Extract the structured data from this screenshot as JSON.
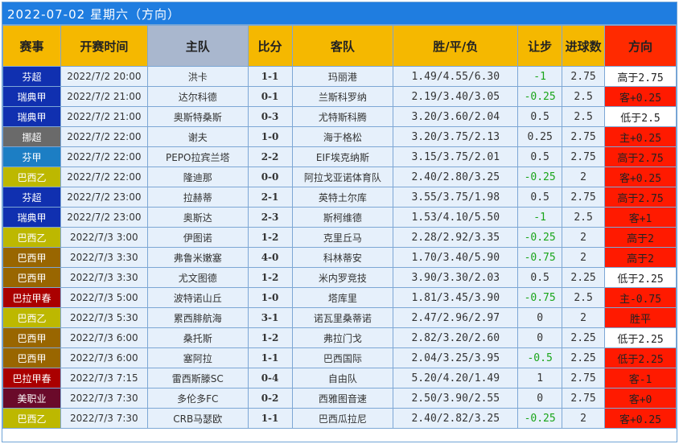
{
  "title": "2022-07-02 星期六（方向）",
  "headers": {
    "league": "赛事",
    "time": "开赛时间",
    "home": "主队",
    "score": "比分",
    "away": "客队",
    "odds": "胜/平/负",
    "handicap": "让步",
    "goals": "进球数",
    "direction": "方向"
  },
  "header_colors": [
    "#f5b800",
    "#f5b800",
    "#a9b7ce",
    "#f5b800",
    "#f5b800",
    "#f5b800",
    "#f5b800",
    "#f5b800",
    "#ff2a00"
  ],
  "rows": [
    {
      "league": "芬超",
      "league_color": "#1030b0",
      "time": "2022/7/2 20:00",
      "home": "洪卡",
      "score": "1-1",
      "away": "玛丽港",
      "odds": "1.49/4.55/6.30",
      "handicap": "-1",
      "hcap_green": true,
      "goals": "2.75",
      "direction": "高于2.75",
      "dir_red": false
    },
    {
      "league": "瑞典甲",
      "league_color": "#1030b0",
      "time": "2022/7/2 21:00",
      "home": "达尔科德",
      "score": "0-1",
      "away": "兰斯科罗纳",
      "odds": "2.19/3.40/3.05",
      "handicap": "-0.25",
      "hcap_green": true,
      "goals": "2.5",
      "direction": "客+0.25",
      "dir_red": true
    },
    {
      "league": "瑞典甲",
      "league_color": "#1030b0",
      "time": "2022/7/2 21:00",
      "home": "奥斯特桑斯",
      "score": "0-3",
      "away": "尤特斯科腾",
      "odds": "3.20/3.60/2.04",
      "handicap": "0.5",
      "hcap_green": false,
      "goals": "2.5",
      "direction": "低于2.5",
      "dir_red": false
    },
    {
      "league": "挪超",
      "league_color": "#6a6a6a",
      "time": "2022/7/2 22:00",
      "home": "谢夫",
      "score": "1-0",
      "away": "海于格松",
      "odds": "3.20/3.75/2.13",
      "handicap": "0.25",
      "hcap_green": false,
      "goals": "2.75",
      "direction": "主+0.25",
      "dir_red": true
    },
    {
      "league": "芬甲",
      "league_color": "#1c7ec4",
      "time": "2022/7/2 22:00",
      "home": "PEPO拉宾兰塔",
      "score": "2-2",
      "away": "EIF埃克纳斯",
      "odds": "3.15/3.75/2.01",
      "handicap": "0.5",
      "hcap_green": false,
      "goals": "2.75",
      "direction": "高于2.75",
      "dir_red": true
    },
    {
      "league": "巴西乙",
      "league_color": "#bdb800",
      "time": "2022/7/2 22:00",
      "home": "隆迪那",
      "score": "0-0",
      "away": "阿拉戈亚诺体育队",
      "odds": "2.40/2.80/3.25",
      "handicap": "-0.25",
      "hcap_green": true,
      "goals": "2",
      "direction": "客+0.25",
      "dir_red": true
    },
    {
      "league": "芬超",
      "league_color": "#1030b0",
      "time": "2022/7/2 23:00",
      "home": "拉赫蒂",
      "score": "2-1",
      "away": "英特土尔库",
      "odds": "3.55/3.75/1.98",
      "handicap": "0.5",
      "hcap_green": false,
      "goals": "2.75",
      "direction": "高于2.75",
      "dir_red": true
    },
    {
      "league": "瑞典甲",
      "league_color": "#1030b0",
      "time": "2022/7/2 23:00",
      "home": "奥斯达",
      "score": "2-3",
      "away": "斯柯维德",
      "odds": "1.53/4.10/5.50",
      "handicap": "-1",
      "hcap_green": true,
      "goals": "2.5",
      "direction": "客+1",
      "dir_red": true
    },
    {
      "league": "巴西乙",
      "league_color": "#bdb800",
      "time": "2022/7/3 3:00",
      "home": "伊图诺",
      "score": "1-2",
      "away": "克里丘马",
      "odds": "2.28/2.92/3.35",
      "handicap": "-0.25",
      "hcap_green": true,
      "goals": "2",
      "direction": "高于2",
      "dir_red": true
    },
    {
      "league": "巴西甲",
      "league_color": "#996600",
      "time": "2022/7/3 3:30",
      "home": "弗鲁米嫩塞",
      "score": "4-0",
      "away": "科林蒂安",
      "odds": "1.70/3.40/5.90",
      "handicap": "-0.75",
      "hcap_green": true,
      "goals": "2",
      "direction": "高于2",
      "dir_red": true
    },
    {
      "league": "巴西甲",
      "league_color": "#996600",
      "time": "2022/7/3 3:30",
      "home": "尤文图德",
      "score": "1-2",
      "away": "米内罗竞技",
      "odds": "3.90/3.30/2.03",
      "handicap": "0.5",
      "hcap_green": false,
      "goals": "2.25",
      "direction": "低于2.25",
      "dir_red": false
    },
    {
      "league": "巴拉甲春",
      "league_color": "#aa0000",
      "time": "2022/7/3 5:00",
      "home": "波特诺山丘",
      "score": "1-0",
      "away": "塔库里",
      "odds": "1.81/3.45/3.90",
      "handicap": "-0.75",
      "hcap_green": true,
      "goals": "2.5",
      "direction": "主-0.75",
      "dir_red": true
    },
    {
      "league": "巴西乙",
      "league_color": "#bdb800",
      "time": "2022/7/3 5:30",
      "home": "累西腓航海",
      "score": "3-1",
      "away": "诺瓦里桑蒂诺",
      "odds": "2.47/2.96/2.97",
      "handicap": "0",
      "hcap_green": false,
      "goals": "2",
      "direction": "胜平",
      "dir_red": true
    },
    {
      "league": "巴西甲",
      "league_color": "#996600",
      "time": "2022/7/3 6:00",
      "home": "桑托斯",
      "score": "1-2",
      "away": "弗拉门戈",
      "odds": "2.82/3.20/2.60",
      "handicap": "0",
      "hcap_green": false,
      "goals": "2.25",
      "direction": "低于2.25",
      "dir_red": false
    },
    {
      "league": "巴西甲",
      "league_color": "#996600",
      "time": "2022/7/3 6:00",
      "home": "塞阿拉",
      "score": "1-1",
      "away": "巴西国际",
      "odds": "2.04/3.25/3.95",
      "handicap": "-0.5",
      "hcap_green": true,
      "goals": "2.25",
      "direction": "低于2.25",
      "dir_red": true
    },
    {
      "league": "巴拉甲春",
      "league_color": "#aa0000",
      "time": "2022/7/3 7:15",
      "home": "雷西斯滕SC",
      "score": "0-4",
      "away": "自由队",
      "odds": "5.20/4.20/1.49",
      "handicap": "1",
      "hcap_green": false,
      "goals": "2.75",
      "direction": "客-1",
      "dir_red": true
    },
    {
      "league": "美职业",
      "league_color": "#6a0a2a",
      "time": "2022/7/3 7:30",
      "home": "多伦多FC",
      "score": "0-2",
      "away": "西雅图音速",
      "odds": "2.50/3.90/2.55",
      "handicap": "0",
      "hcap_green": false,
      "goals": "2.75",
      "direction": "客+0",
      "dir_red": true
    },
    {
      "league": "巴西乙",
      "league_color": "#bdb800",
      "time": "2022/7/3 7:30",
      "home": "CRB马瑟欧",
      "score": "1-1",
      "away": "巴西瓜拉尼",
      "odds": "2.40/2.82/3.25",
      "handicap": "-0.25",
      "hcap_green": true,
      "goals": "2",
      "direction": "客+0.25",
      "dir_red": true
    }
  ]
}
